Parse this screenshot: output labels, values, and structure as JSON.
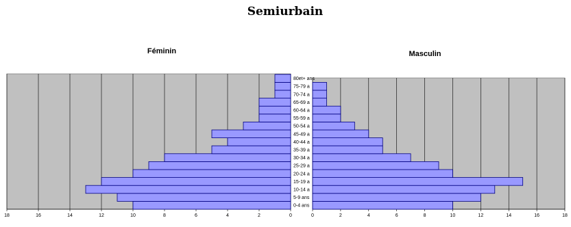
{
  "chart_data": {
    "type": "bar",
    "title": "Semiurbain",
    "categories": [
      "0-4 ans",
      "5-9 ans",
      "10-14 ans",
      "15-19 ans",
      "20-24 ans",
      "25-29 ans",
      "30-34 ans",
      "35-39 ans",
      "40-44 ans",
      "45-49 ans",
      "50-54 ans",
      "55-59 ans",
      "60-64 ans",
      "65-69 ans",
      "70-74 ans",
      "75-79 ans",
      "80et+ ans"
    ],
    "category_labels_visible": [
      "0-4 ans",
      "5-9 ans",
      "10-14 a",
      "15-19 a",
      "20-24 a",
      "25-29 a",
      "30-34 a",
      "35-39 a",
      "40-44 a",
      "45-49 a",
      "50-54 a",
      "55-59 a",
      "60-64 a",
      "65-69 a",
      "70-74 a",
      "75-79 a",
      "80et+ ans"
    ],
    "series": [
      {
        "name": "Féminin",
        "values": [
          10,
          11,
          13,
          12,
          10,
          9,
          8,
          5,
          4,
          5,
          3,
          2,
          2,
          2,
          1,
          1,
          1
        ]
      },
      {
        "name": "Masculin",
        "values": [
          10,
          12,
          13,
          15,
          10,
          9,
          7,
          5,
          5,
          4,
          3,
          2,
          2,
          1,
          1,
          1,
          0
        ]
      }
    ],
    "xlim": [
      0,
      18
    ],
    "xticks": [
      "0",
      "2",
      "4",
      "6",
      "8",
      "10",
      "12",
      "14",
      "16",
      "18"
    ],
    "grid": true,
    "bar_color": "#9999ff",
    "bar_edge_color": "#000080",
    "plot_background": "#c0c0c0"
  }
}
